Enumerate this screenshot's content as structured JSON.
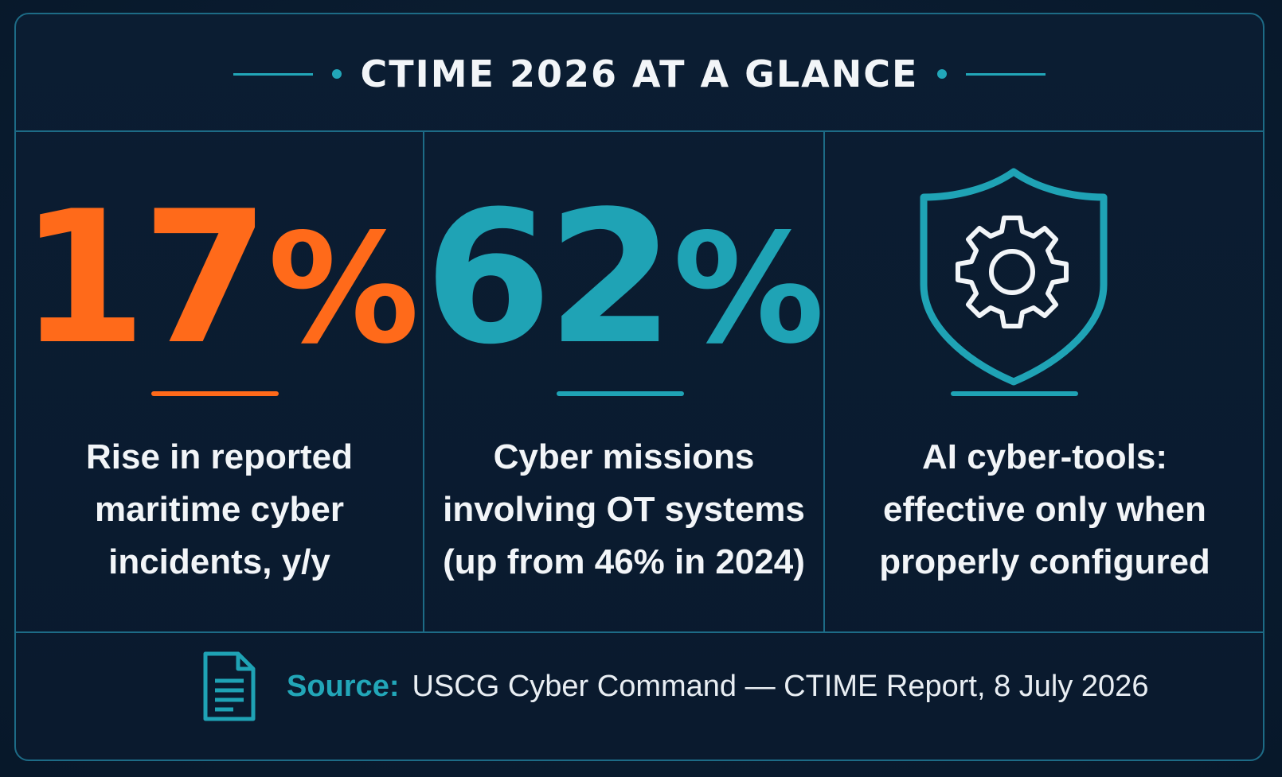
{
  "header": {
    "title": "CTIME 2026 AT A GLANCE"
  },
  "stats": [
    {
      "value": "17",
      "unit": "%",
      "description_lines": [
        "Rise in reported",
        "maritime cyber",
        "incidents, y/y"
      ],
      "color": "#ff6a1a"
    },
    {
      "value": "62",
      "unit": "%",
      "description_lines": [
        "Cyber missions",
        "involving OT systems",
        "(up from 46% in 2024)"
      ],
      "color": "#1fa3b5"
    },
    {
      "icon": "shield-gear-icon",
      "description_lines": [
        "AI cyber-tools:",
        "effective only when",
        "properly configured"
      ],
      "color": "#1fa3b5"
    }
  ],
  "footer": {
    "source_label": "Source:",
    "source_text": "USCG Cyber Command — CTIME Report, 8 July 2026",
    "icon": "document-icon"
  },
  "colors": {
    "accent_teal": "#1fa3b5",
    "accent_orange": "#ff6a1a",
    "background": "#0a1a2e",
    "border": "#1d6b86"
  }
}
